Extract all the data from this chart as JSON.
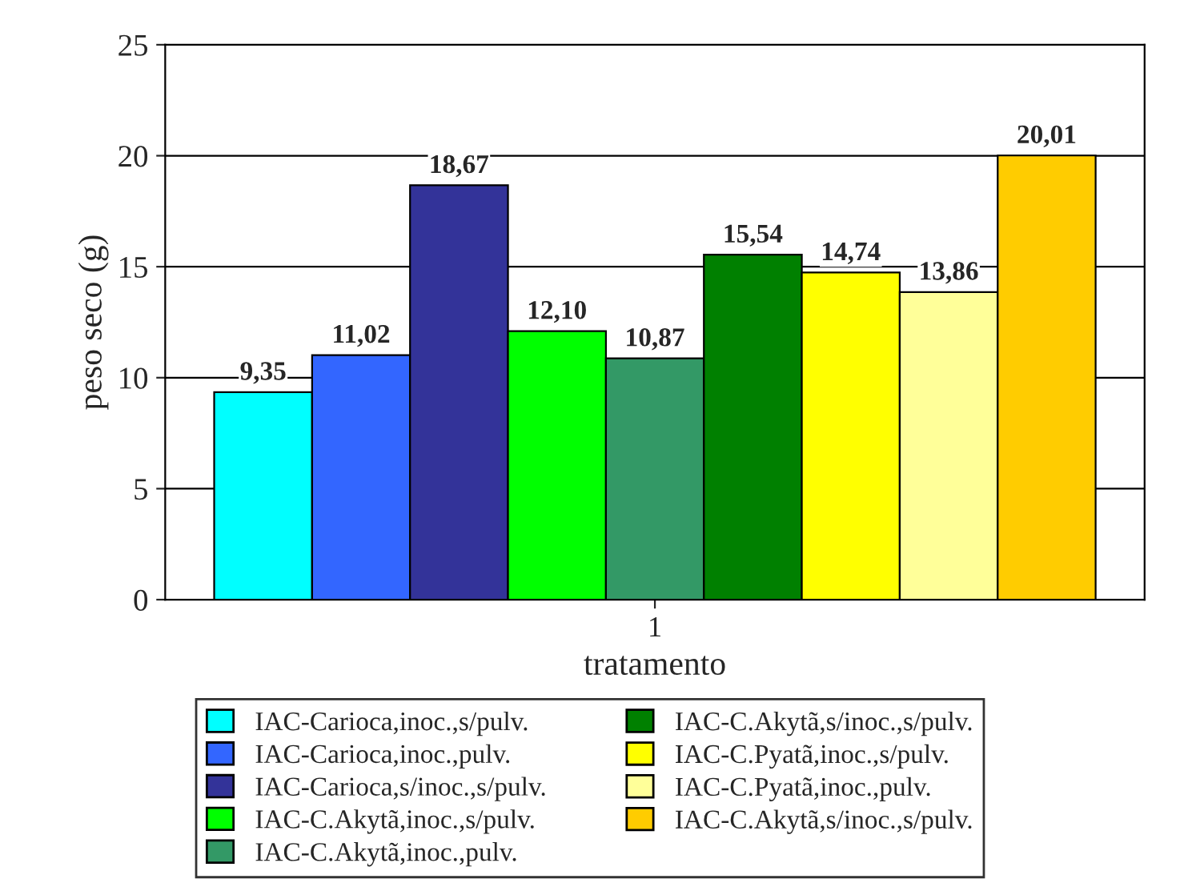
{
  "chart_data": {
    "type": "bar",
    "xlabel": "tratamento",
    "ylabel": "peso seco (g)",
    "categories": [
      "1"
    ],
    "ylim": [
      0,
      25
    ],
    "yticks": [
      0,
      5,
      10,
      15,
      20,
      25
    ],
    "grid": "y",
    "legend": "bottom",
    "series": [
      {
        "name": "IAC-Carioca,inoc.,s/pulv.",
        "color": "#00ffff",
        "values": [
          9.35
        ],
        "value_labels": [
          "9,35"
        ]
      },
      {
        "name": "IAC-Carioca,inoc.,pulv.",
        "color": "#3366ff",
        "values": [
          11.02
        ],
        "value_labels": [
          "11,02"
        ]
      },
      {
        "name": "IAC-Carioca,s/inoc.,s/pulv.",
        "color": "#333399",
        "values": [
          18.67
        ],
        "value_labels": [
          "18,67"
        ]
      },
      {
        "name": "IAC-C.Akytã,inoc.,s/pulv.",
        "color": "#00ff00",
        "values": [
          12.1
        ],
        "value_labels": [
          "12,10"
        ]
      },
      {
        "name": "IAC-C.Akytã,inoc.,pulv.",
        "color": "#339966",
        "values": [
          10.87
        ],
        "value_labels": [
          "10,87"
        ]
      },
      {
        "name": "IAC-C.Akytã,s/inoc.,s/pulv.",
        "color": "#008000",
        "values": [
          15.54
        ],
        "value_labels": [
          "15,54"
        ]
      },
      {
        "name": "IAC-C.Pyatã,inoc.,s/pulv.",
        "color": "#ffff00",
        "values": [
          14.74
        ],
        "value_labels": [
          "14,74"
        ]
      },
      {
        "name": "IAC-C.Pyatã,inoc.,pulv.",
        "color": "#ffff99",
        "values": [
          13.86
        ],
        "value_labels": [
          "13,86"
        ]
      },
      {
        "name": "IAC-C.Akytã,s/inoc.,s/pulv.",
        "color": "#ffcc00",
        "values": [
          20.01
        ],
        "value_labels": [
          "20,01"
        ]
      }
    ]
  }
}
